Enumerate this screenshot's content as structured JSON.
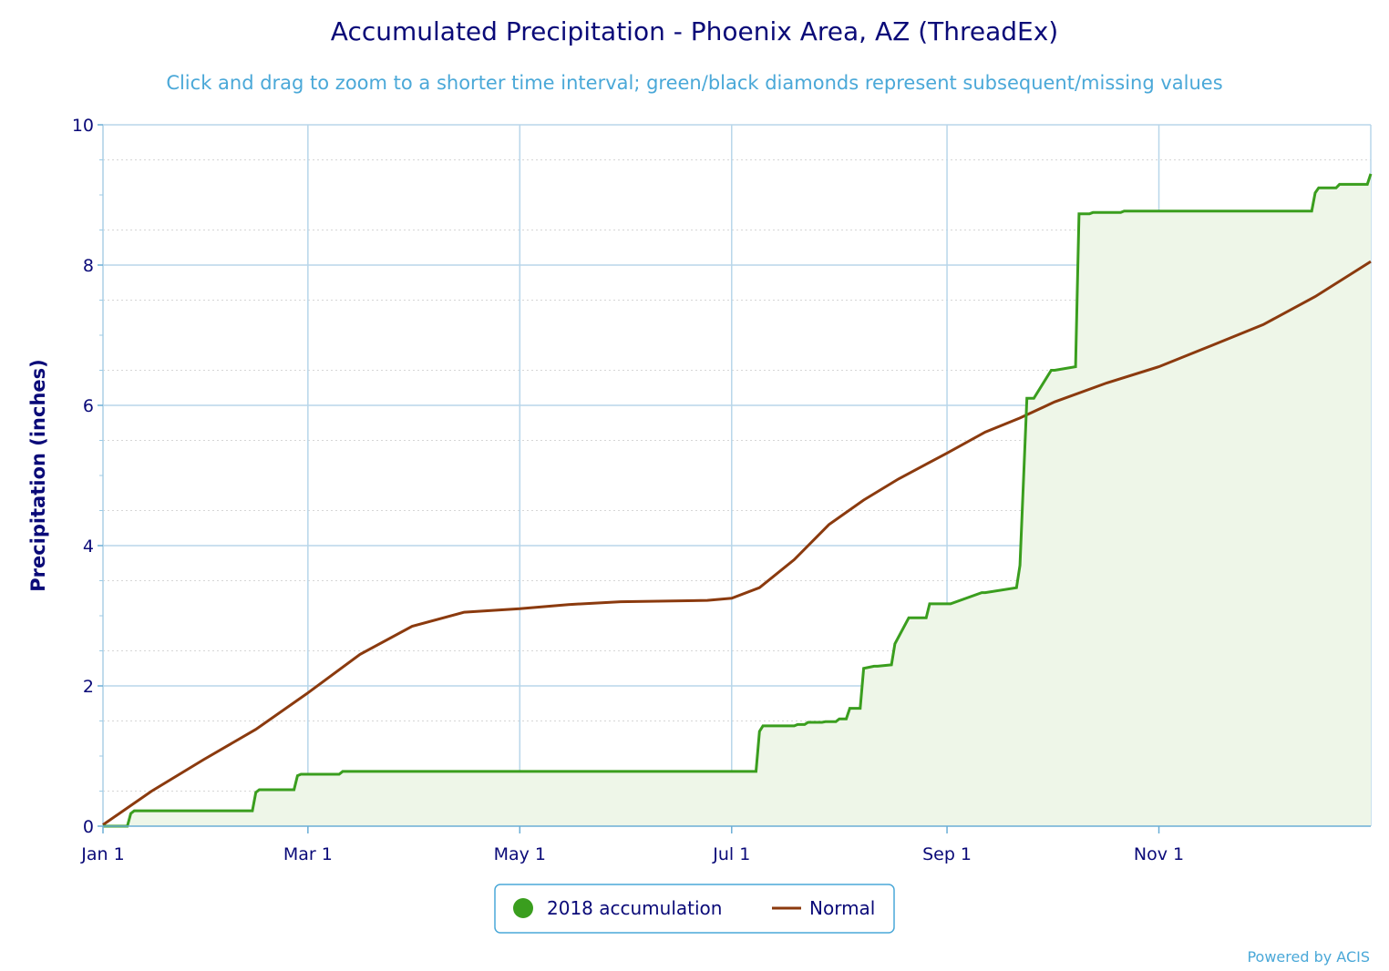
{
  "chart_data": {
    "type": "area",
    "title": "Accumulated Precipitation - Phoenix Area, AZ (ThreadEx)",
    "subtitle": "Click and drag to zoom to a shorter time interval; green/black diamonds represent subsequent/missing values",
    "ylabel": "Precipitation (inches)",
    "xlabel": "",
    "ylim": [
      0,
      10
    ],
    "y_ticks": [
      0,
      2,
      4,
      6,
      8,
      10
    ],
    "x_ticks": [
      {
        "label": "Jan 1",
        "day": 1
      },
      {
        "label": "Mar 1",
        "day": 60
      },
      {
        "label": "May 1",
        "day": 121
      },
      {
        "label": "Jul 1",
        "day": 182
      },
      {
        "label": "Sep 1",
        "day": 244
      },
      {
        "label": "Nov 1",
        "day": 305
      }
    ],
    "x_unit": "day of year",
    "xlim": [
      1,
      366
    ],
    "grid": true,
    "legend_placement": "bottom-center",
    "series": [
      {
        "name": "2018 accumulation",
        "color": "#3a9e1e",
        "fill": "#eef6e8",
        "style": "step-area",
        "x": [
          1,
          8,
          9,
          10,
          44,
          45,
          46,
          56,
          57,
          58,
          69,
          70,
          71,
          189,
          190,
          191,
          200,
          201,
          203,
          204,
          208,
          209,
          212,
          213,
          215,
          216,
          219,
          220,
          223,
          224,
          228,
          229,
          233,
          234,
          238,
          239,
          244,
          245,
          254,
          255,
          264,
          265,
          267,
          268,
          269,
          274,
          275,
          281,
          282,
          285,
          286,
          294,
          295,
          349,
          350,
          351,
          356,
          357,
          365,
          366
        ],
        "y": [
          0,
          0,
          0.18,
          0.22,
          0.22,
          0.48,
          0.52,
          0.52,
          0.72,
          0.74,
          0.74,
          0.78,
          0.78,
          0.78,
          1.35,
          1.43,
          1.43,
          1.45,
          1.45,
          1.48,
          1.48,
          1.49,
          1.49,
          1.53,
          1.53,
          1.68,
          1.68,
          2.25,
          2.28,
          2.28,
          2.3,
          2.6,
          2.97,
          2.97,
          2.97,
          3.17,
          3.17,
          3.17,
          3.33,
          3.33,
          3.4,
          3.72,
          6.1,
          6.1,
          6.1,
          6.5,
          6.5,
          6.55,
          8.73,
          8.73,
          8.75,
          8.75,
          8.77,
          8.77,
          9.03,
          9.1,
          9.1,
          9.15,
          9.15,
          9.3
        ]
      },
      {
        "name": "Normal",
        "color": "#8b3a0e",
        "style": "line",
        "x": [
          1,
          15,
          30,
          45,
          60,
          75,
          90,
          105,
          121,
          135,
          150,
          165,
          175,
          182,
          190,
          200,
          210,
          220,
          230,
          244,
          255,
          265,
          275,
          290,
          305,
          320,
          335,
          350,
          366
        ],
        "y": [
          0.02,
          0.5,
          0.95,
          1.38,
          1.9,
          2.45,
          2.85,
          3.05,
          3.1,
          3.16,
          3.2,
          3.21,
          3.22,
          3.25,
          3.4,
          3.8,
          4.3,
          4.65,
          4.95,
          5.32,
          5.62,
          5.82,
          6.05,
          6.32,
          6.55,
          6.85,
          7.15,
          7.55,
          8.05
        ]
      }
    ],
    "legend": [
      "2018 accumulation",
      "Normal"
    ],
    "credit": "Powered by ACIS"
  }
}
